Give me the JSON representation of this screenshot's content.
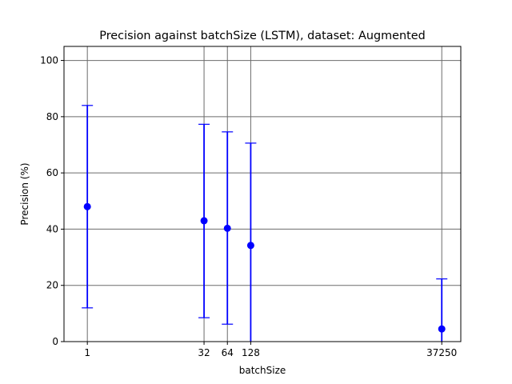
{
  "chart_data": {
    "type": "scatter",
    "title": "Precision against batchSize (LSTM), dataset: Augmented",
    "xlabel": "batchSize",
    "ylabel": "Precision (%)",
    "x_scale": "log2",
    "xlim": [
      0.5,
      65536
    ],
    "ylim": [
      0,
      105
    ],
    "x_ticks": [
      1,
      32,
      64,
      128,
      37250
    ],
    "x_tick_labels": [
      "1",
      "32",
      "64",
      "128",
      "37250"
    ],
    "y_ticks": [
      0,
      20,
      40,
      60,
      80,
      100
    ],
    "y_tick_labels": [
      "0",
      "20",
      "40",
      "60",
      "80",
      "100"
    ],
    "grid": true,
    "marker_color": "#0000ff",
    "grid_color": "#6b6b6b",
    "points": [
      {
        "x": 1,
        "y": 48.0,
        "err_low": 12.0,
        "err_high": 84.0
      },
      {
        "x": 32,
        "y": 43.0,
        "err_low": 8.5,
        "err_high": 77.3
      },
      {
        "x": 64,
        "y": 40.3,
        "err_low": 6.2,
        "err_high": 74.6
      },
      {
        "x": 128,
        "y": 34.2,
        "err_low": 0,
        "err_high": 70.6
      },
      {
        "x": 37250,
        "y": 4.5,
        "err_low": 0,
        "err_high": 22.3
      }
    ]
  }
}
